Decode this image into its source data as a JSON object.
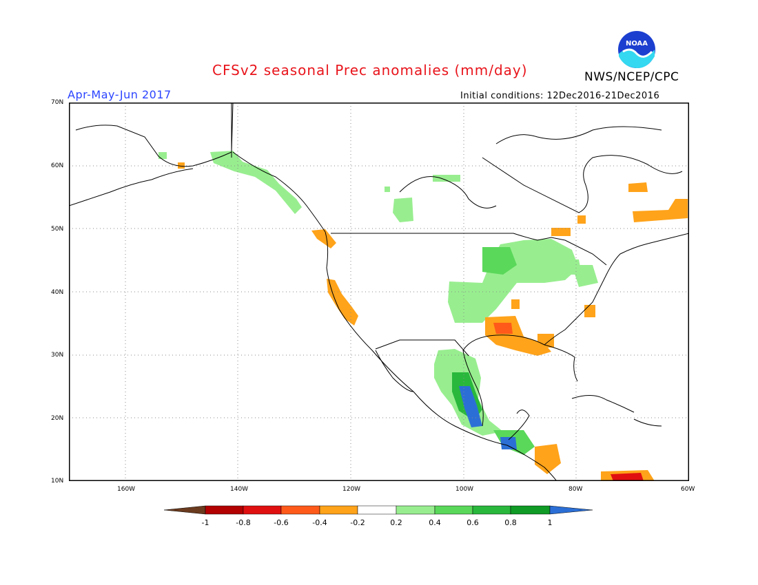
{
  "header": {
    "title": "CFSv2 seasonal Prec anomalies (mm/day)",
    "period": "Apr-May-Jun 2017",
    "initial_conditions": "Initial conditions: 12Dec2016-21Dec2016",
    "agency": "NWS/NCEP/CPC",
    "logo_text": "NOAA"
  },
  "colors": {
    "title": "#e8141b",
    "period": "#2b44ff",
    "land_line": "#000000",
    "grid": "#8a8a8a"
  },
  "axes": {
    "lon_labels": [
      "160W",
      "140W",
      "120W",
      "100W",
      "80W",
      "60W"
    ],
    "lat_labels": [
      "70N",
      "60N",
      "50N",
      "40N",
      "30N",
      "20N",
      "10N"
    ]
  },
  "legend": {
    "unit": "mm/day",
    "tick_labels": [
      "-1",
      "-0.8",
      "-0.6",
      "-0.4",
      "-0.2",
      "0.2",
      "0.4",
      "0.6",
      "0.8",
      "1"
    ],
    "bins": [
      {
        "range": "< -1",
        "color": "#6b3b1f"
      },
      {
        "range": "-1 to -0.8",
        "color": "#b30000"
      },
      {
        "range": "-0.8 to -0.6",
        "color": "#e01010"
      },
      {
        "range": "-0.6 to -0.4",
        "color": "#ff5a1a"
      },
      {
        "range": "-0.4 to -0.2",
        "color": "#ffa31a"
      },
      {
        "range": "-0.2 to 0.2",
        "color": "#ffffff"
      },
      {
        "range": "0.2 to 0.4",
        "color": "#98ee8f"
      },
      {
        "range": "0.4 to 0.6",
        "color": "#5ad85a"
      },
      {
        "range": "0.6 to 0.8",
        "color": "#29b83c"
      },
      {
        "range": "0.8 to 1",
        "color": "#0f9b26"
      },
      {
        "range": "> 1",
        "color": "#2b6fd6"
      }
    ]
  }
}
